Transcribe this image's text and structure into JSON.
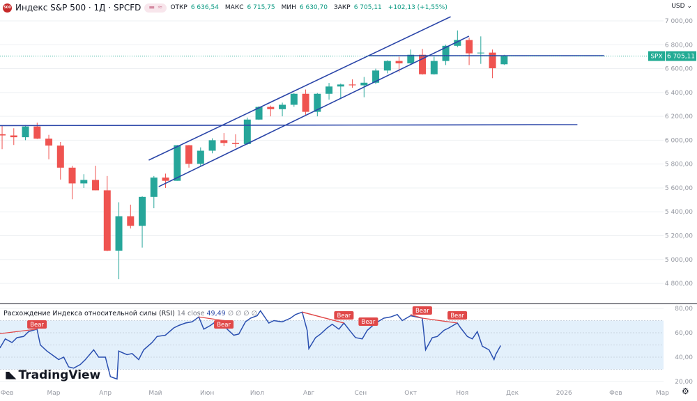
{
  "header": {
    "symbol_logo": "500",
    "title": "Индекс S&P 500 · 1Д · SPCFD",
    "open_label": "ОТКР",
    "open": "6 636,54",
    "high_label": "МАКС",
    "high": "6 715,75",
    "low_label": "МИН",
    "low": "6 630,70",
    "close_label": "ЗАКР",
    "close": "6 705,11",
    "change": "+102,13 (+1,55%)",
    "currency": "USD"
  },
  "price_badge": {
    "ticker": "SPX",
    "value": "6 705,11",
    "color": "#22ab94"
  },
  "rsi_legend": {
    "name": "Расхождение Индекса относительной силы (RSI)",
    "params": "14 close",
    "value": "49,49",
    "extra": "∅ ∅ ∅ ∅"
  },
  "watermark": "TradingView",
  "colors": {
    "up": "#26a69a",
    "down": "#ef5350",
    "drawing": "#2a45a8",
    "rsi": "#2a4fb0",
    "bear": "#e04848",
    "band": "#e3f0fb"
  },
  "chart_data": [
    {
      "type": "candlestick",
      "timeframe_shown": "weekly approximation of daily candles",
      "price_axis": {
        "ticks": [
          "7 000,00",
          "6 800,00",
          "6 600,00",
          "6 400,00",
          "6 200,00",
          "6 000,00",
          "5 800,00",
          "5 600,00",
          "5 400,00",
          "5 200,00",
          "5 000,00",
          "4 800,00"
        ],
        "range": [
          4750,
          7060
        ]
      },
      "time_axis": [
        {
          "label": "Фев",
          "date": "2025-02-01"
        },
        {
          "label": "Мар",
          "date": "2025-03-01"
        },
        {
          "label": "Апр",
          "date": "2025-04-01"
        },
        {
          "label": "Май",
          "date": "2025-05-01"
        },
        {
          "label": "Июн",
          "date": "2025-06-01"
        },
        {
          "label": "Июл",
          "date": "2025-07-01"
        },
        {
          "label": "Авг",
          "date": "2025-08-01"
        },
        {
          "label": "Сен",
          "date": "2025-09-01"
        },
        {
          "label": "Окт",
          "date": "2025-10-01"
        },
        {
          "label": "Ноя",
          "date": "2025-11-01"
        },
        {
          "label": "Дек",
          "date": "2025-12-01"
        },
        {
          "label": "2026",
          "date": "2026-01-01"
        },
        {
          "label": "Фев",
          "date": "2026-02-01"
        },
        {
          "label": "Мар",
          "date": "2026-03-01"
        }
      ],
      "candles": [
        [
          "2025-01-27",
          6050,
          6120,
          5925,
          6040
        ],
        [
          "2025-02-03",
          6040,
          6100,
          5960,
          6025
        ],
        [
          "2025-02-10",
          6025,
          6128,
          6000,
          6115
        ],
        [
          "2025-02-17",
          6115,
          6147,
          6010,
          6013
        ],
        [
          "2025-02-24",
          6013,
          6045,
          5840,
          5955
        ],
        [
          "2025-03-03",
          5955,
          5985,
          5670,
          5770
        ],
        [
          "2025-03-10",
          5770,
          5785,
          5505,
          5638
        ],
        [
          "2025-03-17",
          5638,
          5715,
          5600,
          5667
        ],
        [
          "2025-03-24",
          5667,
          5786,
          5580,
          5580
        ],
        [
          "2025-03-31",
          5580,
          5700,
          5070,
          5074
        ],
        [
          "2025-04-07",
          5074,
          5480,
          4835,
          5363
        ],
        [
          "2025-04-14",
          5363,
          5460,
          5260,
          5282
        ],
        [
          "2025-04-21",
          5282,
          5530,
          5100,
          5525
        ],
        [
          "2025-04-28",
          5525,
          5700,
          5430,
          5687
        ],
        [
          "2025-05-05",
          5687,
          5720,
          5600,
          5660
        ],
        [
          "2025-05-12",
          5660,
          5960,
          5660,
          5958
        ],
        [
          "2025-05-19",
          5958,
          5960,
          5770,
          5802
        ],
        [
          "2025-05-26",
          5802,
          5940,
          5780,
          5912
        ],
        [
          "2025-06-02",
          5912,
          6016,
          5890,
          6000
        ],
        [
          "2025-06-09",
          6000,
          6060,
          5950,
          5977
        ],
        [
          "2025-06-16",
          5977,
          6050,
          5940,
          5968
        ],
        [
          "2025-06-23",
          5968,
          6190,
          5960,
          6173
        ],
        [
          "2025-06-30",
          6173,
          6285,
          6170,
          6279
        ],
        [
          "2025-07-07",
          6279,
          6290,
          6200,
          6260
        ],
        [
          "2025-07-14",
          6260,
          6315,
          6200,
          6297
        ],
        [
          "2025-07-21",
          6297,
          6395,
          6280,
          6389
        ],
        [
          "2025-07-28",
          6389,
          6425,
          6212,
          6238
        ],
        [
          "2025-08-04",
          6238,
          6395,
          6200,
          6389
        ],
        [
          "2025-08-11",
          6389,
          6480,
          6340,
          6450
        ],
        [
          "2025-08-18",
          6450,
          6475,
          6345,
          6467
        ],
        [
          "2025-08-25",
          6467,
          6510,
          6440,
          6460
        ],
        [
          "2025-09-01",
          6460,
          6530,
          6360,
          6482
        ],
        [
          "2025-09-08",
          6482,
          6600,
          6470,
          6584
        ],
        [
          "2025-09-15",
          6584,
          6670,
          6560,
          6664
        ],
        [
          "2025-09-22",
          6664,
          6700,
          6570,
          6644
        ],
        [
          "2025-09-29",
          6644,
          6760,
          6640,
          6716
        ],
        [
          "2025-10-06",
          6716,
          6765,
          6550,
          6553
        ],
        [
          "2025-10-13",
          6553,
          6700,
          6550,
          6664
        ],
        [
          "2025-10-20",
          6664,
          6800,
          6630,
          6791
        ],
        [
          "2025-10-27",
          6791,
          6920,
          6780,
          6840
        ],
        [
          "2025-11-03",
          6840,
          6860,
          6630,
          6728
        ],
        [
          "2025-11-10",
          6728,
          6870,
          6640,
          6734
        ],
        [
          "2025-11-17",
          6734,
          6760,
          6520,
          6603
        ],
        [
          "2025-11-24",
          6636.54,
          6715.75,
          6630.7,
          6705.11
        ]
      ],
      "drawings": [
        {
          "name": "support-line",
          "from": [
            "2025-01-20",
            6122
          ],
          "to": [
            "2026-01-09",
            6130
          ]
        },
        {
          "name": "channel-upper",
          "from": [
            "2025-04-27",
            5833
          ],
          "to": [
            "2025-10-25",
            7035
          ]
        },
        {
          "name": "channel-lower",
          "from": [
            "2025-05-03",
            5611
          ],
          "to": [
            "2025-11-05",
            6872
          ]
        },
        {
          "name": "resistance-line",
          "from": [
            "2025-09-06",
            6708
          ],
          "to": [
            "2026-01-25",
            6708
          ]
        }
      ]
    },
    {
      "type": "line",
      "title": "RSI 14 close",
      "y_axis": {
        "ticks": [
          "80,00",
          "60,00",
          "40,00",
          "20,00"
        ],
        "range": [
          17,
          80
        ],
        "band": [
          30,
          70
        ]
      },
      "points": [
        [
          "2025-01-20",
          50
        ],
        [
          "2025-01-24",
          56
        ],
        [
          "2025-01-28",
          48
        ],
        [
          "2025-01-31",
          55
        ],
        [
          "2025-02-04",
          52
        ],
        [
          "2025-02-07",
          56
        ],
        [
          "2025-02-11",
          57
        ],
        [
          "2025-02-14",
          61
        ],
        [
          "2025-02-19",
          63
        ],
        [
          "2025-02-21",
          50
        ],
        [
          "2025-02-25",
          45
        ],
        [
          "2025-02-28",
          42
        ],
        [
          "2025-03-04",
          38
        ],
        [
          "2025-03-07",
          40
        ],
        [
          "2025-03-10",
          32
        ],
        [
          "2025-03-13",
          31
        ],
        [
          "2025-03-17",
          34
        ],
        [
          "2025-03-20",
          38
        ],
        [
          "2025-03-25",
          46
        ],
        [
          "2025-03-28",
          40
        ],
        [
          "2025-04-01",
          40
        ],
        [
          "2025-04-04",
          24
        ],
        [
          "2025-04-08",
          22
        ],
        [
          "2025-04-09",
          45
        ],
        [
          "2025-04-14",
          42
        ],
        [
          "2025-04-17",
          43
        ],
        [
          "2025-04-21",
          38
        ],
        [
          "2025-04-24",
          46
        ],
        [
          "2025-04-29",
          52
        ],
        [
          "2025-05-02",
          57
        ],
        [
          "2025-05-07",
          58
        ],
        [
          "2025-05-12",
          64
        ],
        [
          "2025-05-15",
          66
        ],
        [
          "2025-05-19",
          68
        ],
        [
          "2025-05-23",
          69
        ],
        [
          "2025-05-27",
          73
        ],
        [
          "2025-05-30",
          63
        ],
        [
          "2025-06-03",
          66
        ],
        [
          "2025-06-06",
          69
        ],
        [
          "2025-06-11",
          70
        ],
        [
          "2025-06-13",
          63
        ],
        [
          "2025-06-17",
          58
        ],
        [
          "2025-06-20",
          59
        ],
        [
          "2025-06-24",
          69
        ],
        [
          "2025-06-27",
          72
        ],
        [
          "2025-07-01",
          74
        ],
        [
          "2025-07-03",
          78
        ],
        [
          "2025-07-08",
          68
        ],
        [
          "2025-07-11",
          70
        ],
        [
          "2025-07-16",
          69
        ],
        [
          "2025-07-21",
          72
        ],
        [
          "2025-07-24",
          75
        ],
        [
          "2025-07-28",
          77
        ],
        [
          "2025-07-31",
          62
        ],
        [
          "2025-08-01",
          47
        ],
        [
          "2025-08-05",
          56
        ],
        [
          "2025-08-08",
          59
        ],
        [
          "2025-08-12",
          64
        ],
        [
          "2025-08-15",
          67
        ],
        [
          "2025-08-19",
          63
        ],
        [
          "2025-08-22",
          68
        ],
        [
          "2025-08-26",
          61
        ],
        [
          "2025-08-29",
          56
        ],
        [
          "2025-09-02",
          55
        ],
        [
          "2025-09-05",
          62
        ],
        [
          "2025-09-10",
          68
        ],
        [
          "2025-09-15",
          72
        ],
        [
          "2025-09-19",
          73
        ],
        [
          "2025-09-23",
          75
        ],
        [
          "2025-09-26",
          70
        ],
        [
          "2025-10-01",
          74
        ],
        [
          "2025-10-08",
          72
        ],
        [
          "2025-10-10",
          46
        ],
        [
          "2025-10-14",
          56
        ],
        [
          "2025-10-17",
          57
        ],
        [
          "2025-10-21",
          62
        ],
        [
          "2025-10-24",
          64
        ],
        [
          "2025-10-29",
          68
        ],
        [
          "2025-10-31",
          64
        ],
        [
          "2025-11-04",
          57
        ],
        [
          "2025-11-07",
          55
        ],
        [
          "2025-11-10",
          61
        ],
        [
          "2025-11-13",
          49
        ],
        [
          "2025-11-17",
          46
        ],
        [
          "2025-11-20",
          38
        ],
        [
          "2025-11-21",
          42
        ],
        [
          "2025-11-24",
          49.49
        ]
      ],
      "divergences": [
        {
          "label": "Bear",
          "from": [
            "2025-01-20",
            58
          ],
          "to": [
            "2025-02-19",
            63
          ]
        },
        {
          "label": "Bear",
          "from": [
            "2025-05-27",
            73
          ],
          "to": [
            "2025-06-11",
            70
          ]
        },
        {
          "label": "Bear",
          "from": [
            "2025-07-28",
            77
          ],
          "to": [
            "2025-08-22",
            68
          ]
        },
        {
          "label": "Bear",
          "from": [
            "2025-07-28",
            77
          ],
          "to": [
            "2025-08-22",
            68
          ]
        },
        {
          "label": "Bear",
          "from": [
            "2025-10-01",
            75
          ],
          "to": [
            "2025-10-08",
            72
          ]
        },
        {
          "label": "Bear",
          "from": [
            "2025-10-08",
            72
          ],
          "to": [
            "2025-10-29",
            68
          ]
        }
      ]
    }
  ]
}
